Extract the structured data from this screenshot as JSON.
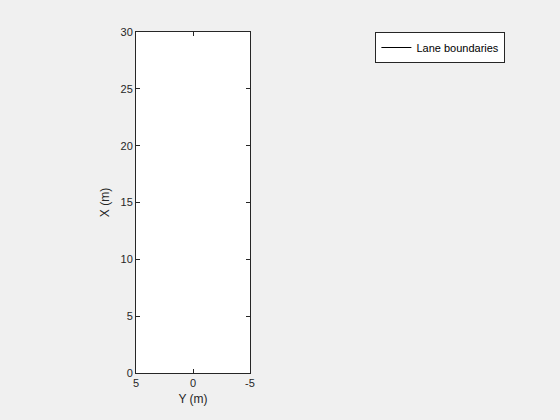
{
  "chart_data": {
    "type": "line",
    "x_label": "Y (m)",
    "y_label": "X (m)",
    "series": [
      {
        "name": "Lane boundaries",
        "color": "#000000",
        "line_style": "solid",
        "x": [],
        "values": []
      }
    ],
    "xlim": [
      5,
      -5
    ],
    "xticks": [
      5,
      0,
      -5
    ],
    "ylim": [
      0,
      30
    ],
    "yticks": [
      0,
      5,
      10,
      15,
      20,
      25,
      30
    ],
    "grid": false,
    "legend": "top right"
  }
}
